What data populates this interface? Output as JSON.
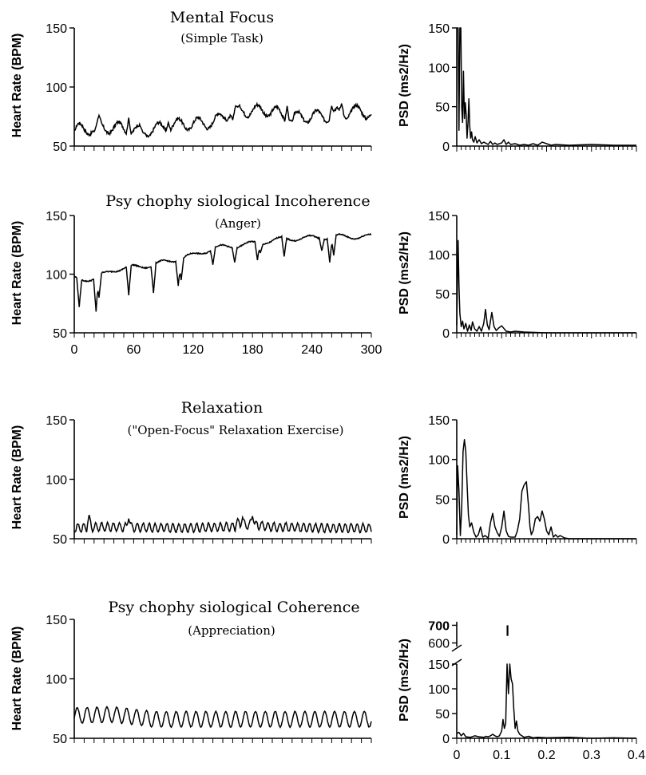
{
  "colors": {
    "line": "#000000",
    "background": "#ffffff"
  },
  "chart_data": [
    {
      "type": "line",
      "id": "hr-focus",
      "title": "Mental Focus",
      "subtitle": "(Simple Task)",
      "xlabel": "",
      "ylabel": "Heart Rate (BPM)",
      "xlim": [
        0,
        300
      ],
      "ylim": [
        50,
        150
      ],
      "yticks": [
        "50",
        "100",
        "150"
      ],
      "xticks": [],
      "signal": {
        "base": [
          [
            0,
            64
          ],
          [
            40,
            66
          ],
          [
            70,
            62
          ],
          [
            100,
            68
          ],
          [
            140,
            70
          ],
          [
            160,
            80
          ],
          [
            200,
            80
          ],
          [
            215,
            74
          ],
          [
            260,
            76
          ],
          [
            280,
            80
          ],
          [
            300,
            78
          ]
        ],
        "amp": 5,
        "period": 20,
        "noise": 2.5
      },
      "series": [
        {
          "x": [
            0,
            20,
            25,
            55,
            70,
            95,
            160,
            165,
            215,
            220,
            260,
            270,
            275
          ],
          "y": [
            63,
            62,
            76,
            74,
            61,
            70,
            72,
            83,
            84,
            71,
            84,
            86,
            73
          ]
        }
      ]
    },
    {
      "type": "line",
      "id": "psd-focus",
      "xlabel": "",
      "ylabel": "PSD (ms2/Hz)",
      "xlim": [
        0,
        0.4
      ],
      "ylim": [
        0,
        150
      ],
      "yticks": [
        "0",
        "50",
        "100",
        "150"
      ],
      "xticks": [],
      "series": [
        {
          "x": [
            0,
            0.003,
            0.005,
            0.007,
            0.009,
            0.011,
            0.013,
            0.015,
            0.017,
            0.019,
            0.021,
            0.023,
            0.025,
            0.027,
            0.029,
            0.031,
            0.033,
            0.035,
            0.038,
            0.041,
            0.045,
            0.05,
            0.055,
            0.06,
            0.07,
            0.075,
            0.08,
            0.085,
            0.09,
            0.1,
            0.105,
            0.11,
            0.115,
            0.12,
            0.13,
            0.14,
            0.15,
            0.16,
            0.17,
            0.18,
            0.19,
            0.2,
            0.21,
            0.22,
            0.25,
            0.3,
            0.35,
            0.4
          ],
          "y": [
            150,
            150,
            20,
            150,
            150,
            50,
            30,
            95,
            35,
            55,
            40,
            10,
            30,
            60,
            25,
            10,
            18,
            8,
            5,
            12,
            4,
            8,
            3,
            5,
            2,
            6,
            2,
            4,
            2,
            4,
            8,
            2,
            5,
            2,
            3,
            1,
            2,
            1,
            3,
            1,
            5,
            3,
            1,
            2,
            1,
            2,
            1,
            1
          ]
        }
      ]
    },
    {
      "type": "line",
      "id": "hr-incoherence",
      "title": "Psy chophy siological Incoherence",
      "subtitle": "(Anger)",
      "xlabel": "",
      "ylabel": "Heart Rate (BPM)",
      "xlim": [
        0,
        300
      ],
      "ylim": [
        50,
        150
      ],
      "yticks": [
        "50",
        "100",
        "150"
      ],
      "xticks": [
        "0",
        "60",
        "120",
        "180",
        "240",
        "300"
      ],
      "signal": {
        "base": [
          [
            0,
            96
          ],
          [
            20,
            96
          ],
          [
            40,
            104
          ],
          [
            80,
            108
          ],
          [
            120,
            116
          ],
          [
            140,
            122
          ],
          [
            180,
            126
          ],
          [
            210,
            130
          ],
          [
            240,
            131
          ],
          [
            270,
            132
          ],
          [
            300,
            132
          ]
        ],
        "amp": 2,
        "period": 30,
        "noise": 0.9
      },
      "series": [
        {
          "x": [
            5,
            22,
            25,
            55,
            80,
            105,
            108,
            140,
            162,
            185,
            188,
            212,
            250,
            258,
            262
          ],
          "y": [
            72,
            68,
            80,
            82,
            84,
            90,
            95,
            108,
            110,
            112,
            118,
            115,
            120,
            110,
            116
          ]
        }
      ]
    },
    {
      "type": "line",
      "id": "psd-incoherence",
      "xlabel": "",
      "ylabel": "PSD (ms2/Hz)",
      "xlim": [
        0,
        0.4
      ],
      "ylim": [
        0,
        150
      ],
      "yticks": [
        "0",
        "50",
        "100",
        "150"
      ],
      "xticks": [],
      "series": [
        {
          "x": [
            0,
            0.003,
            0.005,
            0.007,
            0.01,
            0.013,
            0.016,
            0.02,
            0.024,
            0.028,
            0.032,
            0.035,
            0.04,
            0.045,
            0.05,
            0.055,
            0.06,
            0.064,
            0.068,
            0.072,
            0.078,
            0.083,
            0.088,
            0.093,
            0.1,
            0.11,
            0.12,
            0.13,
            0.15,
            0.2,
            0.3,
            0.4
          ],
          "y": [
            10,
            118,
            60,
            25,
            8,
            15,
            5,
            12,
            2,
            10,
            3,
            14,
            5,
            2,
            8,
            2,
            12,
            30,
            10,
            4,
            26,
            8,
            3,
            6,
            9,
            2,
            1,
            2,
            1,
            0,
            0,
            0
          ]
        }
      ]
    },
    {
      "type": "line",
      "id": "hr-relaxation",
      "title": "Relaxation",
      "subtitle": "(\"Open-Focus\" Relaxation Exercise)",
      "xlabel": "",
      "ylabel": "Heart Rate (BPM)",
      "xlim": [
        0,
        300
      ],
      "ylim": [
        50,
        150
      ],
      "yticks": [
        "50",
        "100",
        "150"
      ],
      "xticks": [],
      "signal": {
        "base": [
          [
            0,
            59
          ],
          [
            30,
            60
          ],
          [
            100,
            59
          ],
          [
            165,
            60
          ],
          [
            180,
            62
          ],
          [
            200,
            60
          ],
          [
            250,
            59
          ],
          [
            300,
            59
          ]
        ],
        "amp": 3.5,
        "period": 6,
        "noise": 1.2
      },
      "series": [
        {
          "x": [
            15,
            55,
            165,
            170,
            180
          ],
          "y": [
            70,
            67,
            67,
            68,
            69
          ]
        }
      ]
    },
    {
      "type": "line",
      "id": "psd-relaxation",
      "xlabel": "",
      "ylabel": "PSD (ms2/Hz)",
      "xlim": [
        0,
        0.4
      ],
      "ylim": [
        0,
        150
      ],
      "yticks": [
        "0",
        "50",
        "100",
        "150"
      ],
      "xticks": [],
      "series": [
        {
          "x": [
            0,
            0.002,
            0.005,
            0.008,
            0.011,
            0.014,
            0.017,
            0.02,
            0.023,
            0.026,
            0.029,
            0.033,
            0.038,
            0.043,
            0.048,
            0.053,
            0.058,
            0.063,
            0.07,
            0.075,
            0.08,
            0.085,
            0.09,
            0.095,
            0.1,
            0.105,
            0.11,
            0.115,
            0.12,
            0.13,
            0.135,
            0.14,
            0.145,
            0.15,
            0.155,
            0.16,
            0.163,
            0.166,
            0.17,
            0.175,
            0.18,
            0.185,
            0.19,
            0.195,
            0.2,
            0.205,
            0.21,
            0.215,
            0.22,
            0.225,
            0.23,
            0.24,
            0.25,
            0.3,
            0.4
          ],
          "y": [
            5,
            92,
            60,
            4,
            40,
            110,
            125,
            110,
            70,
            30,
            15,
            20,
            8,
            2,
            5,
            15,
            2,
            4,
            1,
            20,
            32,
            15,
            8,
            3,
            15,
            35,
            10,
            3,
            2,
            2,
            10,
            25,
            60,
            68,
            72,
            40,
            15,
            5,
            10,
            25,
            28,
            22,
            35,
            25,
            10,
            5,
            15,
            2,
            5,
            2,
            4,
            1,
            0,
            0,
            0
          ]
        }
      ]
    },
    {
      "type": "line",
      "id": "hr-coherence",
      "title": "Psy chophy siological Coherence",
      "subtitle": "(Appreciation)",
      "xlabel": "",
      "ylabel": "Heart Rate (BPM)",
      "xlim": [
        0,
        300
      ],
      "ylim": [
        50,
        150
      ],
      "yticks": [
        "50",
        "100",
        "150"
      ],
      "xticks": [],
      "signal": {
        "base": [
          [
            0,
            69
          ],
          [
            40,
            70
          ],
          [
            80,
            66
          ],
          [
            300,
            66
          ]
        ],
        "amp": 6.5,
        "period": 10,
        "noise": 0.6
      },
      "series": []
    },
    {
      "type": "line",
      "id": "psd-coherence",
      "xlabel": "",
      "ylabel": "PSD (ms2/Hz)",
      "xlim": [
        0,
        0.4
      ],
      "ylim": [
        0,
        150
      ],
      "ylim_upper": [
        580,
        720
      ],
      "yticks": [
        "0",
        "50",
        "100",
        "150"
      ],
      "yticks_upper": [
        "600",
        "700"
      ],
      "xticks": [
        "0",
        "0.1",
        "0.2",
        "0.3",
        "0.4"
      ],
      "peak": {
        "x": 0.113,
        "y_from": 640,
        "y_to": 700
      },
      "series": [
        {
          "x": [
            0,
            0.005,
            0.01,
            0.015,
            0.02,
            0.03,
            0.04,
            0.05,
            0.06,
            0.065,
            0.07,
            0.075,
            0.08,
            0.085,
            0.09,
            0.095,
            0.1,
            0.103,
            0.106,
            0.109,
            0.112,
            0.115,
            0.118,
            0.121,
            0.124,
            0.127,
            0.13,
            0.133,
            0.136,
            0.14,
            0.145,
            0.15,
            0.16,
            0.17,
            0.18,
            0.2,
            0.25,
            0.3,
            0.35,
            0.4
          ],
          "y": [
            10,
            12,
            5,
            10,
            3,
            2,
            5,
            3,
            2,
            4,
            3,
            5,
            8,
            5,
            3,
            5,
            15,
            38,
            20,
            30,
            150,
            90,
            150,
            120,
            110,
            60,
            20,
            35,
            15,
            8,
            5,
            2,
            4,
            1,
            2,
            1,
            2,
            0,
            1,
            0
          ]
        }
      ]
    }
  ]
}
